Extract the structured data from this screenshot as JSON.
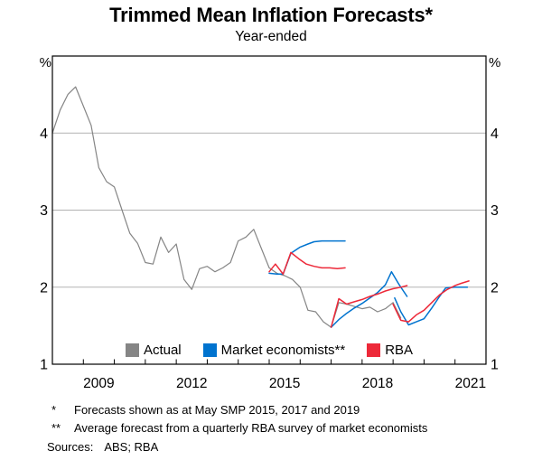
{
  "colors": {
    "actual": "#858585",
    "market": "#0073CF",
    "rba": "#ED2939",
    "grid": "#b3b3b3",
    "axis": "#000000"
  },
  "legend": {
    "items": [
      {
        "label": "Actual",
        "color_key": "actual"
      },
      {
        "label": "Market economists**",
        "color_key": "market"
      },
      {
        "label": "RBA",
        "color_key": "rba"
      }
    ]
  },
  "footnotes": [
    {
      "marker": "*",
      "text": "Forecasts shown as at May SMP 2015, 2017 and 2019"
    },
    {
      "marker": "**",
      "text": "Average forecast from a quarterly RBA survey of market economists"
    }
  ],
  "sources_label": "Sources:",
  "sources_value": "ABS; RBA",
  "chart_data": {
    "type": "line",
    "title": "Trimmed Mean Inflation Forecasts*",
    "subtitle": "Year-ended",
    "unit_label": "%",
    "x_axis": {
      "range": [
        2008,
        2022
      ],
      "minor_tick_years": [
        2009,
        2010,
        2011,
        2012,
        2013,
        2014,
        2015,
        2016,
        2017,
        2018,
        2019,
        2020,
        2021
      ],
      "labels": [
        {
          "text": "2009",
          "center_at": 2009.5
        },
        {
          "text": "2012",
          "center_at": 2012.5
        },
        {
          "text": "2015",
          "center_at": 2015.5
        },
        {
          "text": "2018",
          "center_at": 2018.5
        },
        {
          "text": "2021",
          "center_at": 2021.5
        }
      ]
    },
    "y_axis": {
      "range": [
        1,
        5
      ],
      "tick_labels": [
        "1",
        "2",
        "3",
        "4"
      ],
      "tick_values": [
        1,
        2,
        3,
        4
      ],
      "gridline_values": [
        2,
        3,
        4
      ],
      "unit": "%",
      "mirrored_right": true
    },
    "series": [
      {
        "name": "Actual",
        "color_key": "actual",
        "width": 1.2,
        "points": [
          [
            2008.0,
            4.0
          ],
          [
            2008.25,
            4.3
          ],
          [
            2008.5,
            4.5
          ],
          [
            2008.75,
            4.6
          ],
          [
            2009.0,
            4.35
          ],
          [
            2009.25,
            4.1
          ],
          [
            2009.5,
            3.55
          ],
          [
            2009.75,
            3.37
          ],
          [
            2010.0,
            3.3
          ],
          [
            2010.25,
            3.0
          ],
          [
            2010.5,
            2.7
          ],
          [
            2010.75,
            2.57
          ],
          [
            2011.0,
            2.32
          ],
          [
            2011.25,
            2.3
          ],
          [
            2011.5,
            2.65
          ],
          [
            2011.75,
            2.45
          ],
          [
            2012.0,
            2.56
          ],
          [
            2012.25,
            2.1
          ],
          [
            2012.5,
            1.97
          ],
          [
            2012.75,
            2.24
          ],
          [
            2013.0,
            2.27
          ],
          [
            2013.25,
            2.2
          ],
          [
            2013.5,
            2.25
          ],
          [
            2013.75,
            2.32
          ],
          [
            2014.0,
            2.6
          ],
          [
            2014.25,
            2.65
          ],
          [
            2014.5,
            2.75
          ],
          [
            2014.75,
            2.5
          ],
          [
            2015.0,
            2.25
          ],
          [
            2015.25,
            2.18
          ],
          [
            2015.5,
            2.15
          ],
          [
            2015.75,
            2.1
          ],
          [
            2016.0,
            2.0
          ],
          [
            2016.25,
            1.7
          ],
          [
            2016.5,
            1.68
          ],
          [
            2016.75,
            1.55
          ],
          [
            2017.0,
            1.48
          ],
          [
            2017.25,
            1.8
          ],
          [
            2017.5,
            1.78
          ],
          [
            2017.75,
            1.75
          ],
          [
            2018.0,
            1.72
          ],
          [
            2018.25,
            1.74
          ],
          [
            2018.5,
            1.68
          ],
          [
            2018.75,
            1.72
          ],
          [
            2019.0,
            1.8
          ],
          [
            2019.25,
            1.6
          ]
        ]
      },
      {
        "name": "Market economists (May 2015 SMP)",
        "color_key": "market",
        "width": 1.5,
        "points": [
          [
            2015.0,
            2.18
          ],
          [
            2015.25,
            2.17
          ],
          [
            2015.45,
            2.17
          ],
          [
            2015.7,
            2.44
          ],
          [
            2016.0,
            2.52
          ],
          [
            2016.25,
            2.56
          ],
          [
            2016.45,
            2.59
          ],
          [
            2016.7,
            2.6
          ],
          [
            2017.0,
            2.6
          ],
          [
            2017.2,
            2.6
          ],
          [
            2017.45,
            2.6
          ]
        ]
      },
      {
        "name": "Market economists (May 2017 SMP)",
        "color_key": "market",
        "width": 1.5,
        "points": [
          [
            2017.0,
            1.48
          ],
          [
            2017.25,
            1.58
          ],
          [
            2017.5,
            1.66
          ],
          [
            2017.75,
            1.73
          ],
          [
            2018.0,
            1.79
          ],
          [
            2018.25,
            1.86
          ],
          [
            2018.5,
            1.93
          ],
          [
            2018.75,
            2.03
          ],
          [
            2018.95,
            2.2
          ],
          [
            2019.2,
            2.03
          ],
          [
            2019.45,
            1.88
          ]
        ]
      },
      {
        "name": "Market economists (May 2019 SMP)",
        "color_key": "market",
        "width": 1.5,
        "points": [
          [
            2019.05,
            1.86
          ],
          [
            2019.25,
            1.68
          ],
          [
            2019.5,
            1.51
          ],
          [
            2019.75,
            1.55
          ],
          [
            2020.0,
            1.59
          ],
          [
            2020.25,
            1.73
          ],
          [
            2020.5,
            1.88
          ],
          [
            2020.7,
            1.99
          ],
          [
            2021.0,
            2.0
          ],
          [
            2021.4,
            2.0
          ]
        ]
      },
      {
        "name": "RBA (May 2015 SMP)",
        "color_key": "rba",
        "width": 1.5,
        "points": [
          [
            2015.0,
            2.2
          ],
          [
            2015.2,
            2.3
          ],
          [
            2015.45,
            2.17
          ],
          [
            2015.7,
            2.45
          ],
          [
            2015.95,
            2.37
          ],
          [
            2016.2,
            2.3
          ],
          [
            2016.45,
            2.27
          ],
          [
            2016.7,
            2.25
          ],
          [
            2016.95,
            2.25
          ],
          [
            2017.2,
            2.24
          ],
          [
            2017.45,
            2.25
          ]
        ]
      },
      {
        "name": "RBA (May 2017 SMP)",
        "color_key": "rba",
        "width": 1.5,
        "points": [
          [
            2017.0,
            1.48
          ],
          [
            2017.25,
            1.85
          ],
          [
            2017.5,
            1.78
          ],
          [
            2017.75,
            1.81
          ],
          [
            2018.0,
            1.84
          ],
          [
            2018.25,
            1.88
          ],
          [
            2018.5,
            1.91
          ],
          [
            2018.75,
            1.95
          ],
          [
            2019.0,
            1.98
          ],
          [
            2019.25,
            2.0
          ],
          [
            2019.45,
            2.02
          ]
        ]
      },
      {
        "name": "RBA (May 2019 SMP)",
        "color_key": "rba",
        "width": 1.5,
        "points": [
          [
            2019.0,
            1.78
          ],
          [
            2019.25,
            1.57
          ],
          [
            2019.5,
            1.55
          ],
          [
            2019.75,
            1.64
          ],
          [
            2020.0,
            1.7
          ],
          [
            2020.25,
            1.8
          ],
          [
            2020.5,
            1.9
          ],
          [
            2020.75,
            1.97
          ],
          [
            2021.0,
            2.02
          ],
          [
            2021.2,
            2.05
          ],
          [
            2021.45,
            2.08
          ]
        ]
      }
    ]
  }
}
